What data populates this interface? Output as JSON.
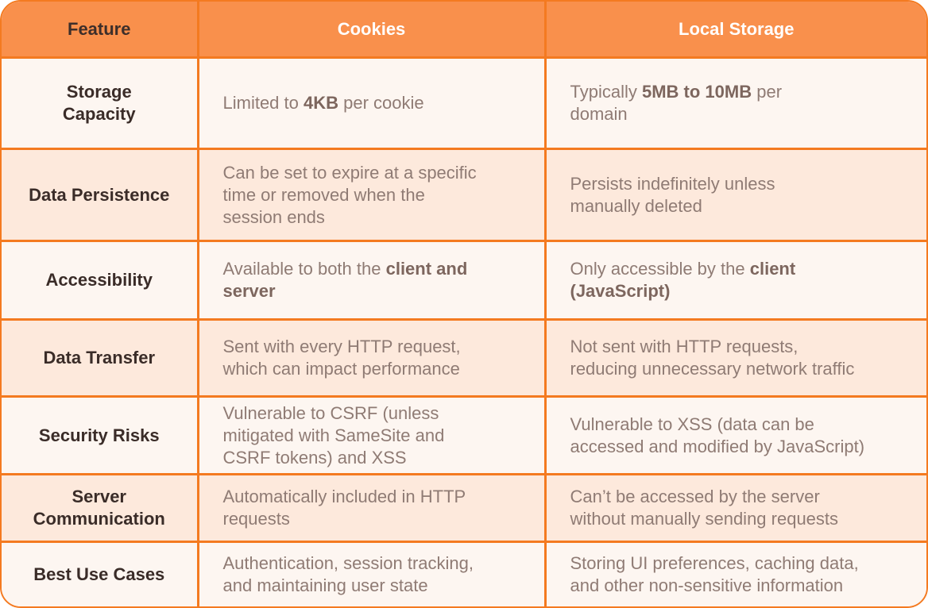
{
  "header": {
    "feature": "Feature",
    "cookies": "Cookies",
    "local_storage": "Local Storage"
  },
  "rows": [
    {
      "feature": "Storage\nCapacity",
      "cookies": [
        {
          "t": "Limited to "
        },
        {
          "t": "4KB",
          "b": true
        },
        {
          "t": " per cookie"
        }
      ],
      "local": [
        {
          "t": "Typically "
        },
        {
          "t": "5MB to 10MB",
          "b": true
        },
        {
          "t": " per\ndomain"
        }
      ]
    },
    {
      "feature": "Data Persistence",
      "cookies": [
        {
          "t": "Can be set to expire at a specific\ntime or removed when the\nsession ends"
        }
      ],
      "local": [
        {
          "t": "Persists indefinitely unless\nmanually deleted"
        }
      ]
    },
    {
      "feature": "Accessibility",
      "cookies": [
        {
          "t": "Available to both the "
        },
        {
          "t": "client and\nserver",
          "b": true
        }
      ],
      "local": [
        {
          "t": "Only accessible by the "
        },
        {
          "t": "client\n(JavaScript)",
          "b": true
        }
      ]
    },
    {
      "feature": "Data Transfer",
      "cookies": [
        {
          "t": "Sent with every HTTP request,\nwhich can impact performance"
        }
      ],
      "local": [
        {
          "t": "Not sent with HTTP requests,\nreducing unnecessary network traffic"
        }
      ]
    },
    {
      "feature": "Security Risks",
      "cookies": [
        {
          "t": "Vulnerable to CSRF (unless\nmitigated with SameSite and\nCSRF tokens) and XSS"
        }
      ],
      "local": [
        {
          "t": "Vulnerable to XSS (data can be\naccessed and modified by JavaScript)"
        }
      ]
    },
    {
      "feature": "Server\nCommunication",
      "cookies": [
        {
          "t": "Automatically included in HTTP\nrequests"
        }
      ],
      "local": [
        {
          "t": "Can’t be accessed by the server\nwithout manually sending requests"
        }
      ]
    },
    {
      "feature": "Best Use Cases",
      "cookies": [
        {
          "t": "Authentication, session tracking,\nand maintaining user state"
        }
      ],
      "local": [
        {
          "t": "Storing UI preferences, caching data,\nand other non-sensitive information"
        }
      ]
    }
  ]
}
